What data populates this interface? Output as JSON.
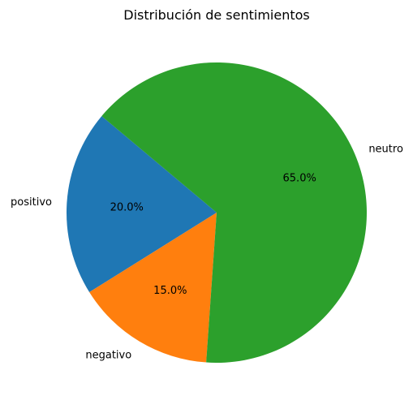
{
  "chart_data": {
    "type": "pie",
    "title": "Distribución de sentimientos",
    "categories": [
      "positivo",
      "negativo",
      "neutro"
    ],
    "values": [
      20.0,
      15.0,
      65.0
    ],
    "percent_labels": [
      "20.0%",
      "15.0%",
      "65.0%"
    ],
    "colors": [
      "#1f77b4",
      "#ff7f0e",
      "#2ca02c"
    ],
    "start_angle_deg": 140,
    "direction": "counterclockwise",
    "legend": "none"
  }
}
